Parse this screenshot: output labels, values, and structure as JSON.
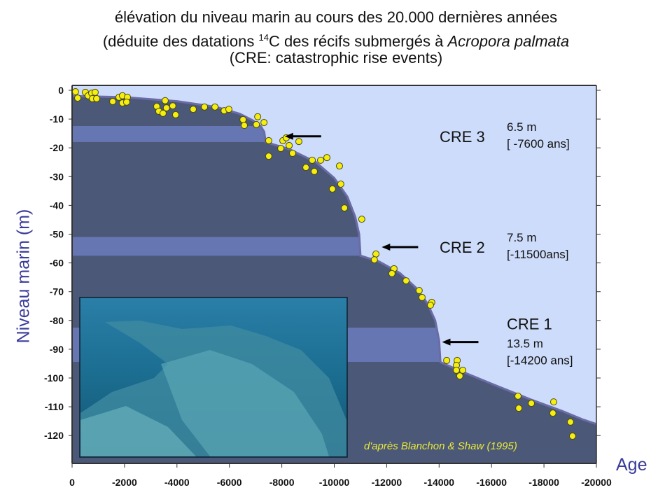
{
  "title": {
    "line1": "élévation du niveau marin au cours des 20.000 dernières années",
    "line2_a": "(déduite des datations ",
    "line2_sup": "14",
    "line2_b": "C des récifs submergés à ",
    "line2_italic": "Acropora palmata",
    "line3": "(CRE: catastrophic rise events)"
  },
  "credit": "d'après Blanchon & Shaw (1995)",
  "colors": {
    "sky": "#cddcfb",
    "sea_floor": "#4b5877",
    "band": "#6676b2",
    "edge": "#6b6ba6",
    "point": "#f5ee10",
    "axis_label": "#3b3b9a"
  },
  "chart_data": {
    "type": "scatter",
    "xlabel": "Age",
    "ylabel": "Niveau marin (m)",
    "xlim": [
      0,
      -20000
    ],
    "ylim": [
      0,
      -127
    ],
    "x_ticks": [
      0,
      -2000,
      -4000,
      -6000,
      -8000,
      -10000,
      -12000,
      -14000,
      -16000,
      -18000,
      -20000
    ],
    "x_tick_labels": [
      "0",
      "-2000",
      "-4000",
      "-6000",
      "-8000",
      "-10000",
      "-12000",
      "-14000",
      "-16000",
      "-18000",
      "-20000"
    ],
    "y_ticks": [
      0,
      -10,
      -20,
      -30,
      -40,
      -50,
      -60,
      -70,
      -80,
      -90,
      -100,
      -110,
      -120
    ],
    "y_tick_labels": [
      "0",
      "-10",
      "-20",
      "-30",
      "-40",
      "-50",
      "-60",
      "-70",
      "-80",
      "-90",
      "-100",
      "-110",
      "-120"
    ],
    "points": [
      [
        -130,
        -0.5
      ],
      [
        -214,
        -2.7
      ],
      [
        -507,
        -0.7
      ],
      [
        -614,
        -1.9
      ],
      [
        -748,
        -1.0
      ],
      [
        -880,
        -0.7
      ],
      [
        -774,
        -2.9
      ],
      [
        -935,
        -2.9
      ],
      [
        -1550,
        -3.9
      ],
      [
        -1790,
        -2.4
      ],
      [
        -1920,
        -1.9
      ],
      [
        -1920,
        -4.4
      ],
      [
        -2110,
        -2.4
      ],
      [
        -2080,
        -4.1
      ],
      [
        -3230,
        -5.6
      ],
      [
        -3550,
        -3.6
      ],
      [
        -3600,
        -6.1
      ],
      [
        -3310,
        -7.3
      ],
      [
        -3470,
        -8.0
      ],
      [
        -3840,
        -5.4
      ],
      [
        -3950,
        -8.5
      ],
      [
        -4620,
        -6.6
      ],
      [
        -5050,
        -5.8
      ],
      [
        -5450,
        -5.8
      ],
      [
        -5800,
        -7.1
      ],
      [
        -5980,
        -6.6
      ],
      [
        -6520,
        -10.2
      ],
      [
        -6570,
        -12.2
      ],
      [
        -7080,
        -9.2
      ],
      [
        -7030,
        -11.9
      ],
      [
        -7320,
        -11.2
      ],
      [
        -7500,
        -17.5
      ],
      [
        -7500,
        -22.9
      ],
      [
        -7960,
        -20.2
      ],
      [
        -8040,
        -17.5
      ],
      [
        -8170,
        -16.5
      ],
      [
        -8280,
        -19.2
      ],
      [
        -8410,
        -21.9
      ],
      [
        -8650,
        -17.8
      ],
      [
        -8920,
        -26.8
      ],
      [
        -9240,
        -28.2
      ],
      [
        -9160,
        -24.3
      ],
      [
        -9480,
        -24.3
      ],
      [
        -9720,
        -23.4
      ],
      [
        -10200,
        -26.3
      ],
      [
        -9930,
        -34.3
      ],
      [
        -10250,
        -32.6
      ],
      [
        -10390,
        -40.9
      ],
      [
        -11050,
        -44.8
      ],
      [
        -11590,
        -56.9
      ],
      [
        -11530,
        -58.9
      ],
      [
        -12280,
        -62.0
      ],
      [
        -12200,
        -63.7
      ],
      [
        -12740,
        -66.2
      ],
      [
        -13240,
        -69.6
      ],
      [
        -13350,
        -72.0
      ],
      [
        -13720,
        -73.7
      ],
      [
        -13670,
        -74.7
      ],
      [
        -14290,
        -93.9
      ],
      [
        -14690,
        -93.9
      ],
      [
        -14660,
        -95.6
      ],
      [
        -14660,
        -97.3
      ],
      [
        -14900,
        -97.3
      ],
      [
        -14790,
        -99.3
      ],
      [
        -17010,
        -106.3
      ],
      [
        -17040,
        -110.5
      ],
      [
        -17520,
        -108.8
      ],
      [
        -18370,
        -108.3
      ],
      [
        -18340,
        -112.2
      ],
      [
        -19010,
        -115.3
      ],
      [
        -19090,
        -120.2
      ]
    ],
    "sea_level_curve": [
      [
        0,
        -2
      ],
      [
        -2000,
        -2.4
      ],
      [
        -4000,
        -3.8
      ],
      [
        -5500,
        -5.8
      ],
      [
        -6400,
        -8.2
      ],
      [
        -6900,
        -10.5
      ],
      [
        -7200,
        -12.5
      ],
      [
        -7330,
        -14.5
      ],
      [
        -7380,
        -18
      ],
      [
        -8300,
        -20.5
      ],
      [
        -9300,
        -25
      ],
      [
        -10000,
        -30.5
      ],
      [
        -10500,
        -37
      ],
      [
        -10800,
        -44
      ],
      [
        -10950,
        -50
      ],
      [
        -11000,
        -57.5
      ],
      [
        -11700,
        -59.5
      ],
      [
        -12500,
        -63.5
      ],
      [
        -13100,
        -68.5
      ],
      [
        -13550,
        -74
      ],
      [
        -13850,
        -80
      ],
      [
        -14000,
        -87
      ],
      [
        -14050,
        -94.5
      ],
      [
        -14800,
        -97.5
      ],
      [
        -16000,
        -102
      ],
      [
        -17500,
        -107.5
      ],
      [
        -18700,
        -111.5
      ],
      [
        -19500,
        -114.5
      ],
      [
        -20000,
        -116
      ]
    ],
    "cre_bands": [
      {
        "name": "CRE 3",
        "rise": "6.5 m",
        "age": "[ -7600 ans]",
        "top": -12.4,
        "bottom": -18,
        "arrow_age": -9500,
        "arrow_level": -16
      },
      {
        "name": "CRE 2",
        "rise": "7.5 m",
        "age": "[-11500ans]",
        "top": -51,
        "bottom": -57.5,
        "arrow_age": -13200,
        "arrow_level": -54.5
      },
      {
        "name": "CRE 1",
        "rise": "13.5 m",
        "age": "[-14200 ans]",
        "top": -82.5,
        "bottom": -94.4,
        "arrow_age": -15500,
        "arrow_level": -87.5
      }
    ]
  }
}
